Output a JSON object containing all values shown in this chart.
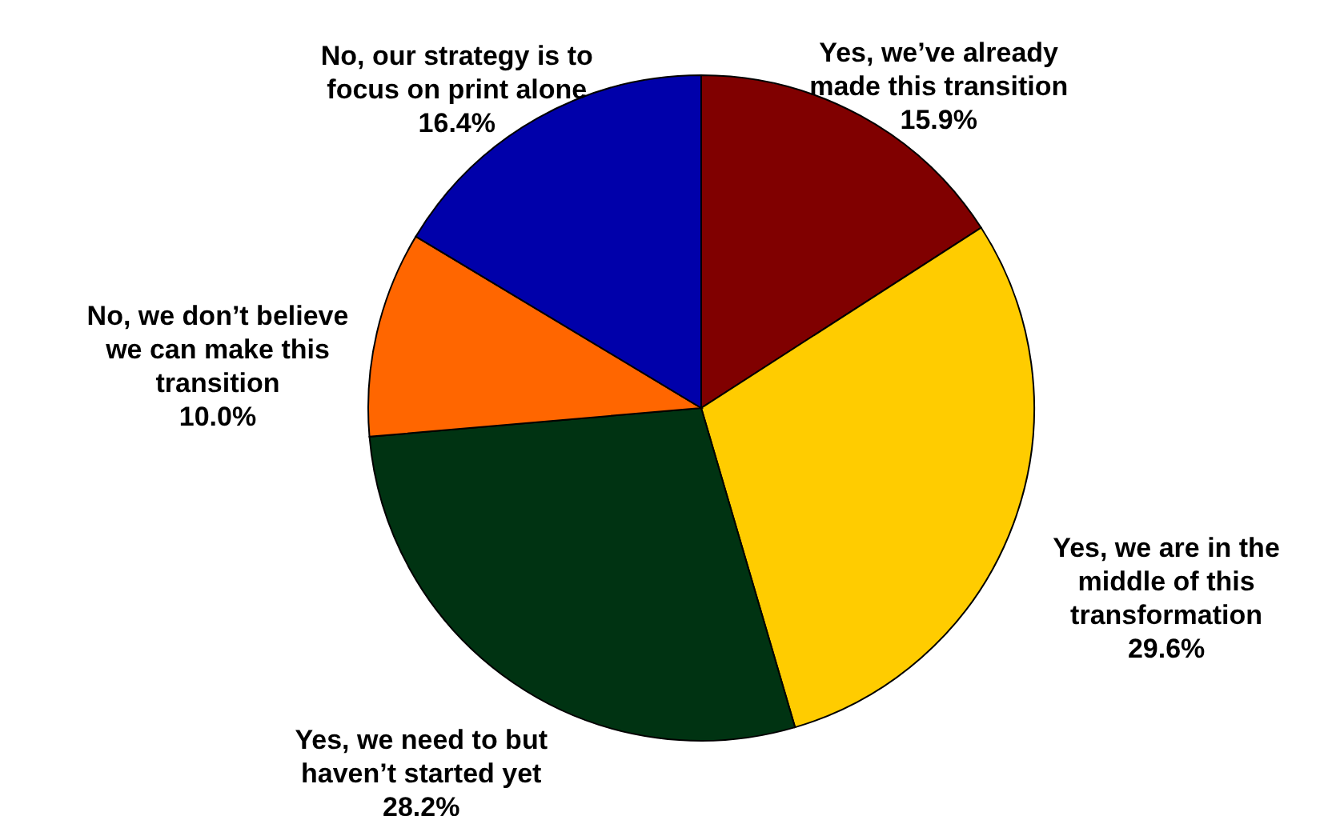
{
  "chart_data": {
    "type": "pie",
    "categories": [
      "Yes, we’ve already made this transition",
      "Yes, we are in the middle of this transformation",
      "Yes, we need to but haven’t started yet",
      "No, we don’t believe we can make this transition",
      "No, our strategy is to focus on print alone"
    ],
    "values": [
      15.9,
      29.6,
      28.2,
      10.0,
      16.4
    ],
    "value_labels": [
      "15.9%",
      "29.6%",
      "28.2%",
      "10.0%",
      "16.4%"
    ],
    "colors": [
      "#800000",
      "#ffcc00",
      "#003312",
      "#ff6600",
      "#0000aa"
    ]
  }
}
